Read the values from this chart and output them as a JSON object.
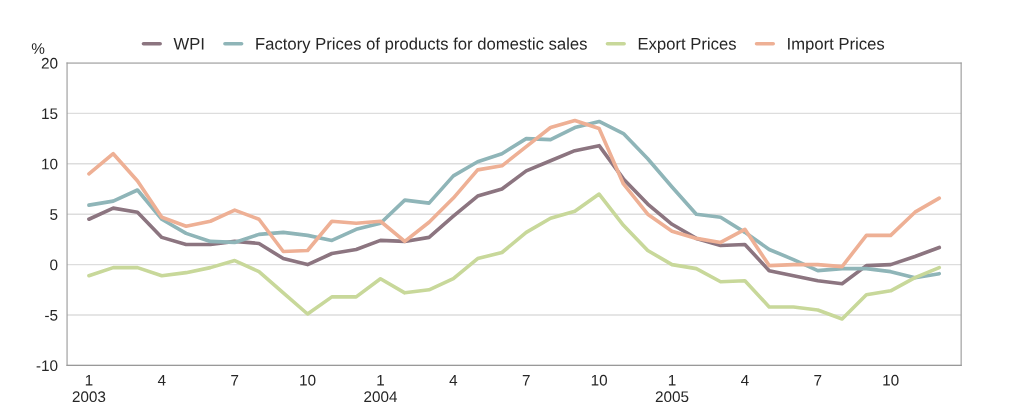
{
  "chart_data": {
    "type": "line",
    "ylabel": "%",
    "categories": [
      "1\n2003",
      null,
      null,
      "4",
      null,
      null,
      "7",
      null,
      null,
      "10",
      null,
      null,
      "1\n2004",
      null,
      null,
      "4",
      null,
      null,
      "7",
      null,
      null,
      "10",
      null,
      null,
      "1\n2005",
      null,
      null,
      "4",
      null,
      null,
      "7",
      null,
      null,
      "10",
      null,
      null
    ],
    "series": [
      {
        "name": "WPI",
        "color": "#8c7580",
        "values": [
          4.5,
          5.6,
          5.2,
          2.7,
          2.0,
          2.0,
          2.3,
          2.1,
          0.6,
          0.0,
          1.1,
          1.5,
          2.4,
          2.3,
          2.7,
          4.8,
          6.8,
          7.5,
          9.3,
          10.3,
          11.3,
          11.8,
          8.5,
          6.0,
          4.0,
          2.6,
          1.9,
          2.0,
          -0.6,
          -1.1,
          -1.6,
          -1.9,
          -0.1,
          0.0,
          0.8,
          1.7
        ]
      },
      {
        "name": "Factory Prices of products for domestic sales",
        "color": "#8fb5b8",
        "values": [
          5.9,
          6.3,
          7.4,
          4.5,
          3.1,
          2.3,
          2.2,
          3.0,
          3.2,
          2.9,
          2.4,
          3.5,
          4.1,
          6.4,
          6.1,
          8.8,
          10.2,
          11.0,
          12.5,
          12.4,
          13.6,
          14.2,
          13.0,
          10.5,
          7.7,
          5.0,
          4.7,
          3.2,
          1.5,
          0.5,
          -0.6,
          -0.4,
          -0.4,
          -0.7,
          -1.3,
          -0.9
        ]
      },
      {
        "name": "Export Prices",
        "color": "#c8d89a",
        "values": [
          -1.1,
          -0.3,
          -0.3,
          -1.1,
          -0.8,
          -0.3,
          0.4,
          -0.7,
          -2.8,
          -4.9,
          -3.2,
          -3.2,
          -1.4,
          -2.8,
          -2.5,
          -1.4,
          0.6,
          1.2,
          3.2,
          4.6,
          5.3,
          7.0,
          3.9,
          1.4,
          0.0,
          -0.4,
          -1.7,
          -1.6,
          -4.2,
          -4.2,
          -4.5,
          -5.4,
          -3.0,
          -2.6,
          -1.3,
          -0.3
        ]
      },
      {
        "name": "Import Prices",
        "color": "#eeb095",
        "values": [
          9.0,
          11.0,
          8.3,
          4.7,
          3.8,
          4.3,
          5.4,
          4.5,
          1.3,
          1.4,
          4.3,
          4.1,
          4.3,
          2.3,
          4.2,
          6.6,
          9.4,
          9.8,
          11.7,
          13.6,
          14.3,
          13.5,
          8.0,
          5.0,
          3.3,
          2.6,
          2.2,
          3.5,
          -0.1,
          0.0,
          0.0,
          -0.2,
          2.9,
          2.9,
          5.2,
          6.6
        ]
      }
    ],
    "ylim": [
      -10,
      20
    ],
    "yticks": [
      -10,
      -5,
      0,
      5,
      10,
      15,
      20
    ],
    "grid": "y",
    "legend": "top",
    "line_style": "solid",
    "marker": "none"
  }
}
